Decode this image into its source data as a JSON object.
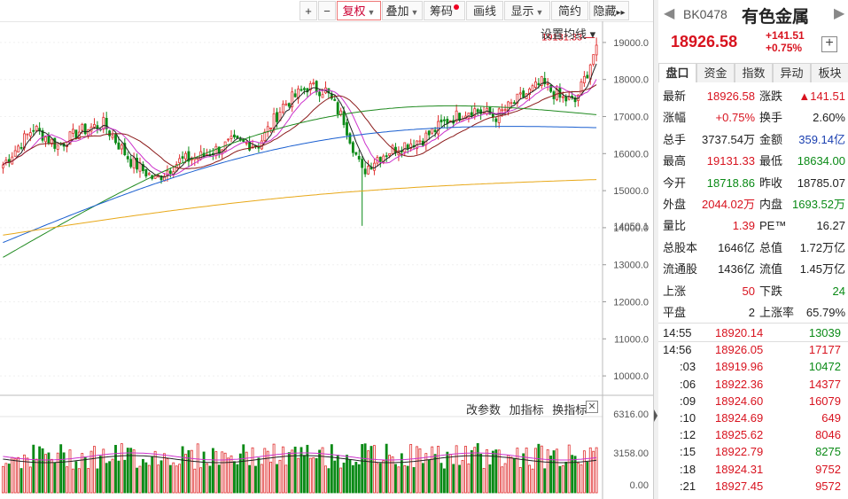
{
  "toolbar": {
    "plus": "+",
    "minus": "−",
    "fq": "复权",
    "overlay": "叠加",
    "chip": "筹码",
    "draw": "画线",
    "display": "显示",
    "simple": "简约",
    "hide": "隐藏",
    "more": "▸▸",
    "ma_setting": "设置均线 ▾"
  },
  "chart": {
    "price_ticks": [
      "19000.0",
      "18000.0",
      "17000.0",
      "16000.0",
      "15000.0",
      "14000.0",
      "13000.0",
      "12000.0",
      "11000.0",
      "10000.0"
    ],
    "low_label": "14050.1",
    "high_label": "19131.33",
    "vol_ticks": [
      "6316.00",
      "3158.00",
      "0.00"
    ],
    "indicator_buttons": [
      "改参数",
      "加指标",
      "换指标"
    ],
    "close": "✕",
    "colors": {
      "up": "#e03030",
      "down": "#0a8a16",
      "ma5": "#222222",
      "ma10": "#cc33cc",
      "ma20": "#8b1a1a",
      "ma30": "#1f8a1f",
      "ma60": "#1a5fd0",
      "ma120": "#e8a818"
    }
  },
  "chart_data": {
    "type": "candlestick",
    "title": "",
    "ylim": [
      9500,
      19500
    ],
    "volume_ylim": [
      0,
      6316
    ],
    "anchor_points_close": [
      {
        "i": 0,
        "v": 15700
      },
      {
        "i": 10,
        "v": 16700
      },
      {
        "i": 18,
        "v": 16200
      },
      {
        "i": 25,
        "v": 16600
      },
      {
        "i": 33,
        "v": 16800
      },
      {
        "i": 42,
        "v": 15800
      },
      {
        "i": 50,
        "v": 15300
      },
      {
        "i": 58,
        "v": 15800
      },
      {
        "i": 66,
        "v": 15950
      },
      {
        "i": 75,
        "v": 16300
      },
      {
        "i": 84,
        "v": 16250
      },
      {
        "i": 92,
        "v": 17300
      },
      {
        "i": 100,
        "v": 17800
      },
      {
        "i": 106,
        "v": 17700
      },
      {
        "i": 112,
        "v": 16900
      },
      {
        "i": 118,
        "v": 15500
      },
      {
        "i": 123,
        "v": 15900
      },
      {
        "i": 130,
        "v": 16200
      },
      {
        "i": 138,
        "v": 16400
      },
      {
        "i": 146,
        "v": 16900
      },
      {
        "i": 154,
        "v": 17200
      },
      {
        "i": 162,
        "v": 17000
      },
      {
        "i": 170,
        "v": 17500
      },
      {
        "i": 177,
        "v": 17900
      },
      {
        "i": 183,
        "v": 17500
      },
      {
        "i": 188,
        "v": 17400
      },
      {
        "i": 192,
        "v": 18200
      },
      {
        "i": 195,
        "v": 18926.58
      }
    ],
    "high": 19131.33,
    "low": 14050.1
  },
  "panel": {
    "nav_prev": "◀",
    "nav_next": "▶",
    "code": "BK0478",
    "name": "有色金属",
    "price": "18926.58",
    "chg": "+141.51",
    "pct": "+0.75%",
    "add": "+",
    "tabs": [
      "盘口",
      "资金",
      "指数",
      "异动",
      "板块"
    ],
    "quote": [
      [
        [
          "最新",
          "18926.58",
          "red"
        ],
        [
          "涨跌",
          "▲141.51",
          "red"
        ]
      ],
      [
        [
          "涨幅",
          "+0.75%",
          "red"
        ],
        [
          "换手",
          "2.60%",
          "blk"
        ]
      ],
      [
        [
          "总手",
          "3737.54万",
          "blk"
        ],
        [
          "金额",
          "359.14亿",
          "blue"
        ]
      ],
      [
        [
          "最高",
          "19131.33",
          "red"
        ],
        [
          "最低",
          "18634.00",
          "green"
        ]
      ],
      [
        [
          "今开",
          "18718.86",
          "green"
        ],
        [
          "昨收",
          "18785.07",
          "blk"
        ]
      ],
      [
        [
          "外盘",
          "2044.02万",
          "red"
        ],
        [
          "内盘",
          "1693.52万",
          "green"
        ]
      ],
      [
        [
          "量比",
          "1.39",
          "red"
        ],
        [
          "PE™",
          "16.27",
          "blk"
        ]
      ],
      [
        [
          "总股本",
          "1646亿",
          "blk"
        ],
        [
          "总值",
          "1.72万亿",
          "blk"
        ]
      ],
      [
        [
          "流通股",
          "1436亿",
          "blk"
        ],
        [
          "流值",
          "1.45万亿",
          "blk"
        ]
      ],
      [
        [
          "上涨",
          "50",
          "red"
        ],
        [
          "下跌",
          "24",
          "green"
        ]
      ],
      [
        [
          "平盘",
          "2",
          "blk"
        ],
        [
          "上涨率",
          "65.79%",
          "blk"
        ]
      ]
    ],
    "ticks": [
      [
        "14:55",
        "18920.14",
        "13039",
        "green"
      ],
      [
        "14:56",
        "18926.05",
        "17177",
        "red"
      ],
      [
        ":03",
        "18919.96",
        "10472",
        "green"
      ],
      [
        ":06",
        "18922.36",
        "14377",
        "red"
      ],
      [
        ":09",
        "18924.60",
        "16079",
        "red"
      ],
      [
        ":10",
        "18924.69",
        "649",
        "red"
      ],
      [
        ":12",
        "18925.62",
        "8046",
        "red"
      ],
      [
        ":15",
        "18922.79",
        "8275",
        "green"
      ],
      [
        ":18",
        "18924.31",
        "9752",
        "red"
      ],
      [
        ":21",
        "18927.45",
        "9572",
        "red"
      ]
    ]
  }
}
